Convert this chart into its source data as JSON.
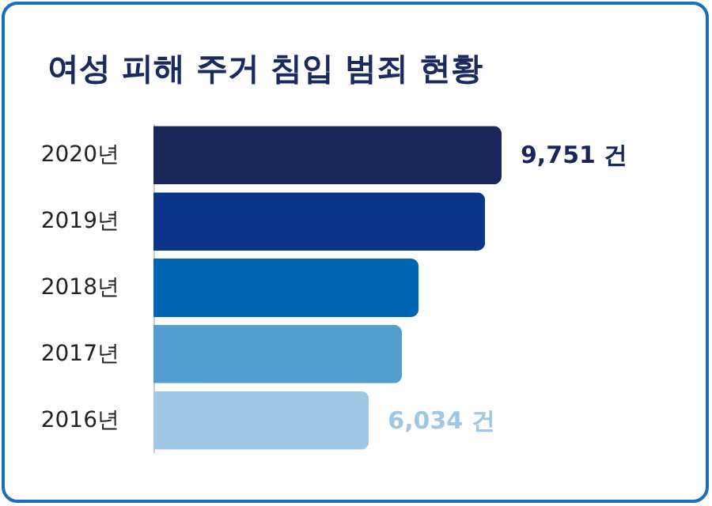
{
  "chart_data": {
    "type": "bar",
    "orientation": "horizontal",
    "title": "여성 피해 주거 침입 범죄 현황",
    "categories": [
      "2020년",
      "2019년",
      "2018년",
      "2017년",
      "2016년"
    ],
    "values": [
      9751,
      9290,
      7430,
      6960,
      6034
    ],
    "colors": [
      "#19265a",
      "#0b358a",
      "#0066b3",
      "#549dd0",
      "#9fc6e2"
    ],
    "value_labels": [
      "9,751 건",
      null,
      null,
      null,
      "6,034 건"
    ]
  }
}
